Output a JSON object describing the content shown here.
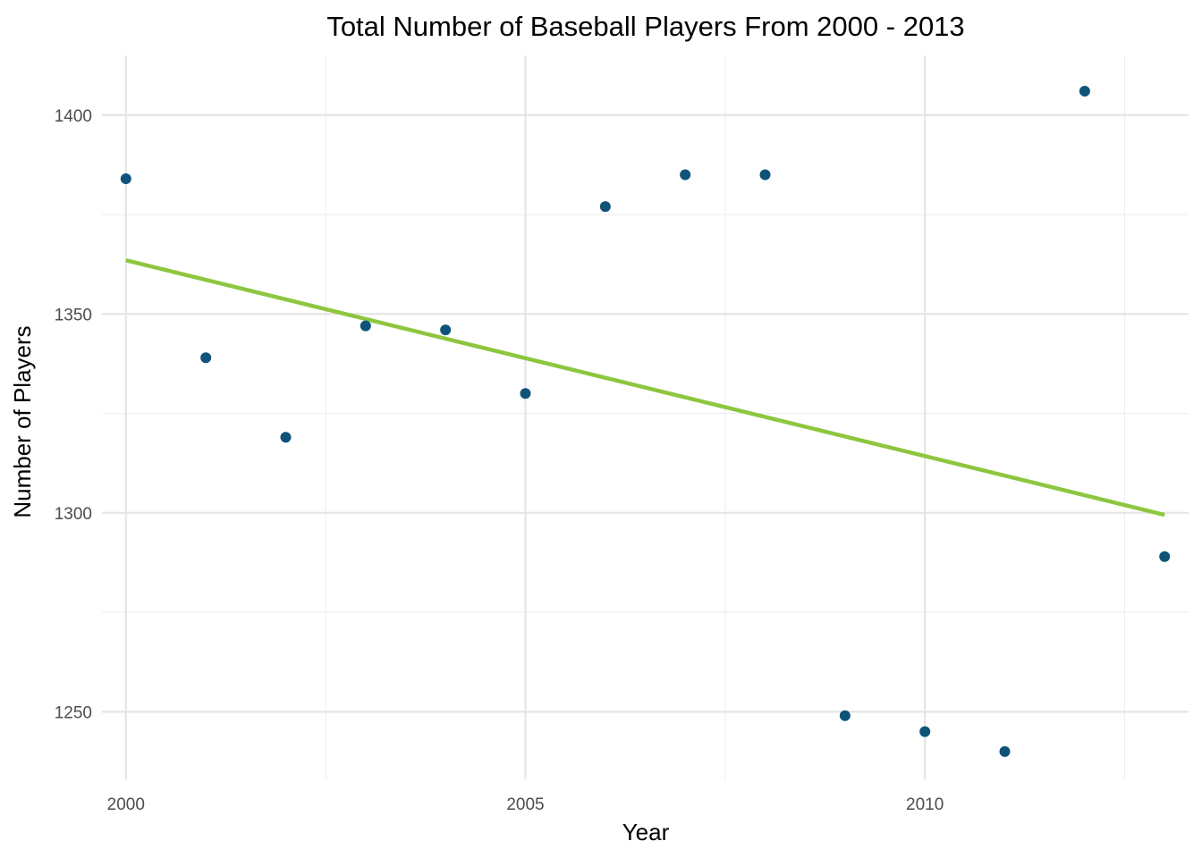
{
  "chart_data": {
    "type": "scatter",
    "title": "Total Number of Baseball Players From 2000 - 2013",
    "xlabel": "Year",
    "ylabel": "Number of Players",
    "xlim": [
      1999.7,
      2013.3
    ],
    "ylim": [
      1233,
      1415
    ],
    "x_ticks": [
      2000,
      2005,
      2010
    ],
    "x_minor_ticks": [
      2002.5,
      2007.5,
      2012.5
    ],
    "y_ticks": [
      1250,
      1300,
      1350,
      1400
    ],
    "y_minor_ticks": [
      1275,
      1325,
      1375
    ],
    "grid": true,
    "legend": "none",
    "point_color": "#0f5478",
    "line_color": "#8dc63f",
    "points": [
      {
        "x": 2000,
        "y": 1384
      },
      {
        "x": 2001,
        "y": 1339
      },
      {
        "x": 2002,
        "y": 1319
      },
      {
        "x": 2003,
        "y": 1347
      },
      {
        "x": 2004,
        "y": 1346
      },
      {
        "x": 2005,
        "y": 1330
      },
      {
        "x": 2006,
        "y": 1377
      },
      {
        "x": 2007,
        "y": 1385
      },
      {
        "x": 2008,
        "y": 1385
      },
      {
        "x": 2009,
        "y": 1249
      },
      {
        "x": 2010,
        "y": 1245
      },
      {
        "x": 2011,
        "y": 1240
      },
      {
        "x": 2012,
        "y": 1406
      },
      {
        "x": 2013,
        "y": 1289
      }
    ],
    "trend_line": {
      "x": [
        2000,
        2013
      ],
      "y": [
        1363.5,
        1299.5
      ]
    }
  }
}
